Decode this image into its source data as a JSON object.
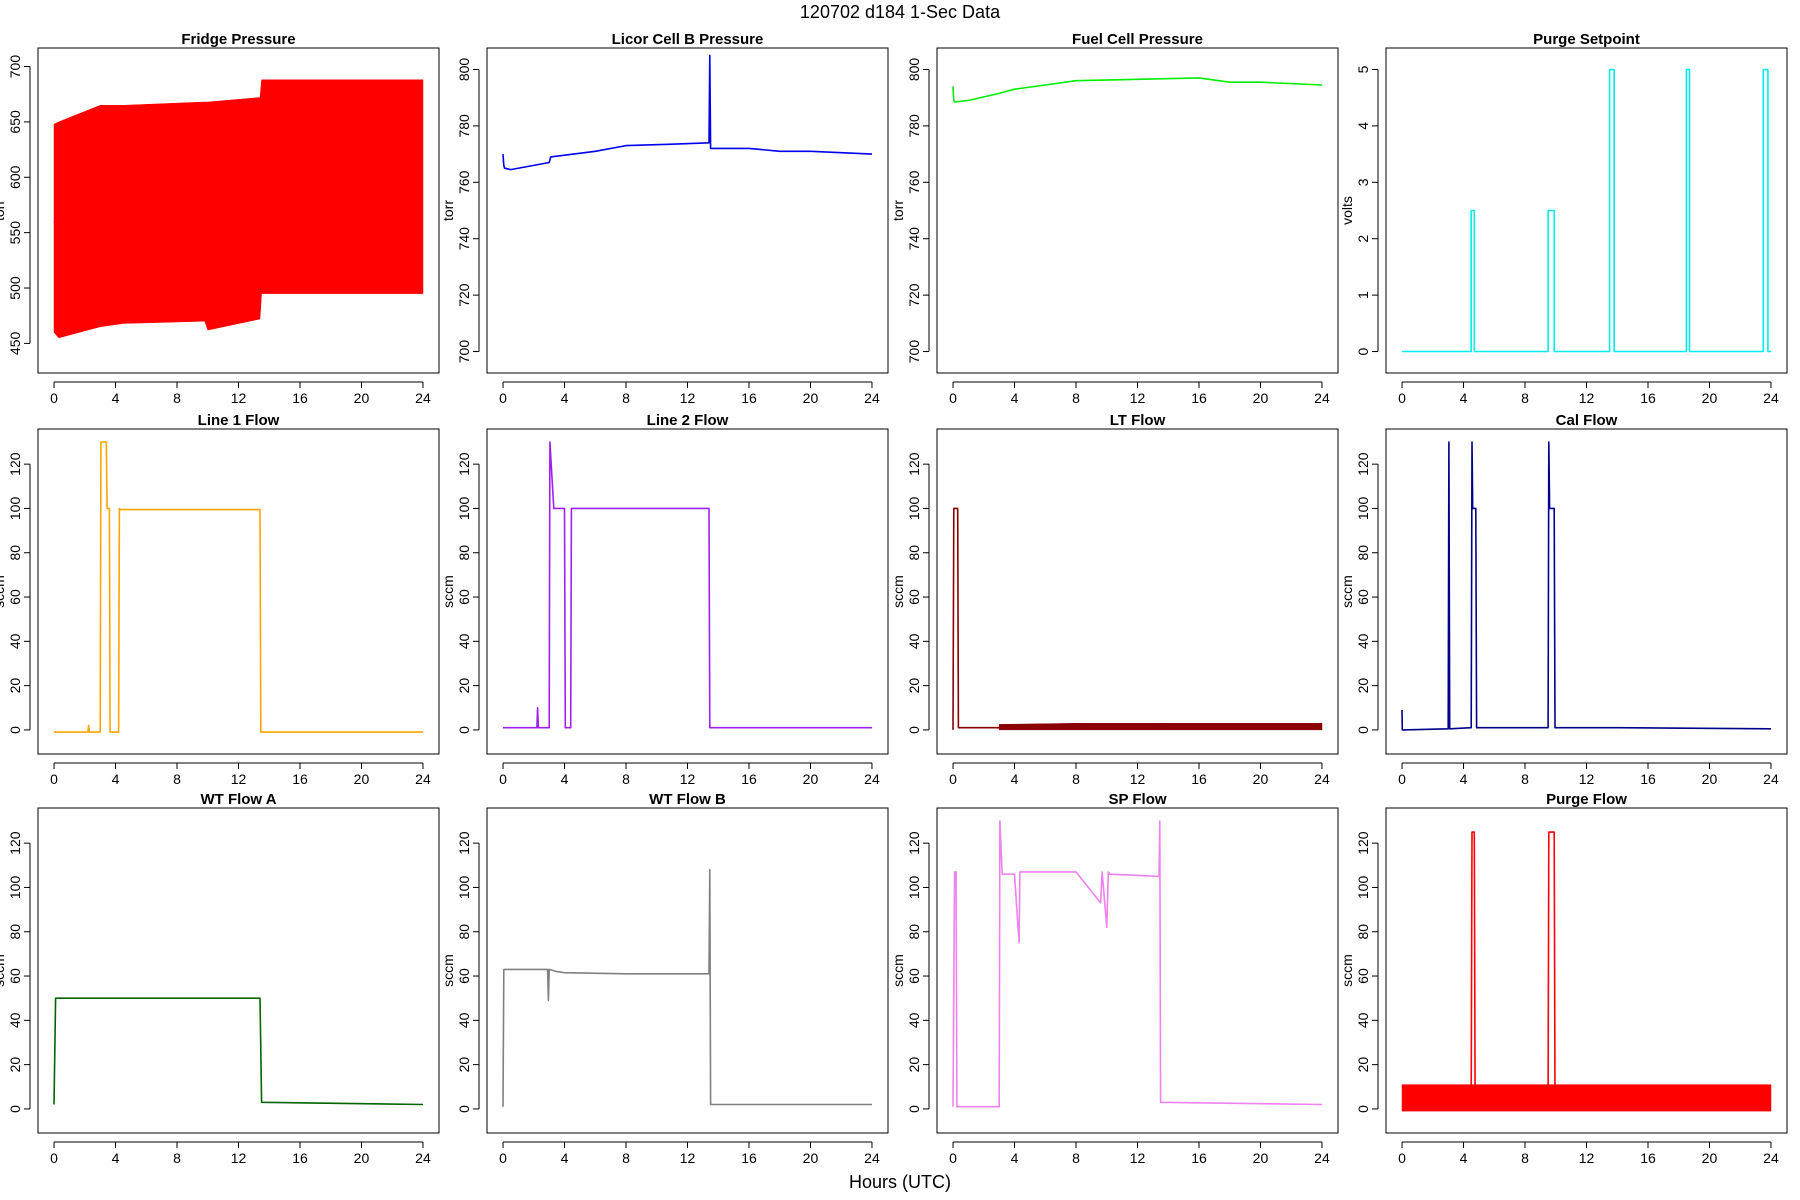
{
  "figure": {
    "title": "120702   d184   1-Sec Data",
    "xlabel": "Hours (UTC)"
  },
  "chart_data": [
    {
      "type": "line",
      "title": "Fridge Pressure",
      "ylabel": "torr",
      "color": "#ff0000",
      "xlim": [
        0,
        24
      ],
      "ylim": [
        435,
        705
      ],
      "xticks": [
        0,
        4,
        8,
        12,
        16,
        20,
        24
      ],
      "yticks": [
        450,
        500,
        550,
        600,
        650,
        700
      ],
      "series": [
        {
          "x": [
            0,
            0.2,
            3,
            4.5,
            9.8,
            10,
            13.4,
            13.5,
            24
          ],
          "y": [
            560,
            555,
            560,
            575,
            575,
            560,
            575,
            600,
            600
          ]
        }
      ],
      "band": {
        "x": [
          0,
          0.3,
          3,
          4.5,
          9.8,
          10,
          13.4,
          13.5,
          24
        ],
        "low": [
          460,
          455,
          465,
          468,
          470,
          462,
          472,
          495,
          495
        ],
        "high": [
          648,
          650,
          665,
          665,
          668,
          668,
          672,
          688,
          688
        ]
      }
    },
    {
      "type": "line",
      "title": "Licor Cell B Pressure",
      "ylabel": "torr",
      "color": "#0000ee",
      "xlim": [
        0,
        24
      ],
      "ylim": [
        697,
        803
      ],
      "xticks": [
        0,
        4,
        8,
        12,
        16,
        20,
        24
      ],
      "yticks": [
        700,
        720,
        740,
        760,
        780,
        800
      ],
      "series": [
        {
          "x": [
            0,
            0.05,
            0.1,
            0.5,
            3,
            3.1,
            6,
            8,
            11,
            13.4,
            13.45,
            13.5,
            16,
            18,
            20,
            24
          ],
          "y": [
            770,
            766,
            765,
            764.5,
            767,
            769,
            771,
            773,
            773.5,
            774,
            805,
            772,
            772,
            771,
            771,
            770
          ]
        }
      ]
    },
    {
      "type": "line",
      "title": "Fuel Cell Pressure",
      "ylabel": "torr",
      "color": "#00ee00",
      "xlim": [
        0,
        24
      ],
      "ylim": [
        697,
        803
      ],
      "xticks": [
        0,
        4,
        8,
        12,
        16,
        20,
        24
      ],
      "yticks": [
        700,
        720,
        740,
        760,
        780,
        800
      ],
      "series": [
        {
          "x": [
            0,
            0.05,
            0.1,
            1,
            3,
            4,
            6,
            8,
            12,
            16,
            18,
            20,
            24
          ],
          "y": [
            794,
            789,
            788.5,
            789,
            791.5,
            793,
            794.5,
            796,
            796.5,
            797,
            795.5,
            795.5,
            794.5
          ]
        }
      ]
    },
    {
      "type": "line",
      "title": "Purge Setpoint",
      "ylabel": "volts",
      "color": "#00eeee",
      "xlim": [
        0,
        24
      ],
      "ylim": [
        -0.15,
        5.15
      ],
      "xticks": [
        0,
        4,
        8,
        12,
        16,
        20,
        24
      ],
      "yticks": [
        0,
        1,
        2,
        3,
        4,
        5
      ],
      "series": [
        {
          "x": [
            0,
            4.5,
            4.5,
            4.7,
            4.7,
            9.5,
            9.5,
            9.9,
            9.9,
            13.5,
            13.5,
            13.8,
            13.8,
            18.5,
            18.5,
            18.7,
            18.7,
            23.5,
            23.5,
            23.8,
            23.8,
            24
          ],
          "y": [
            0,
            0,
            2.5,
            2.5,
            0,
            0,
            2.5,
            2.5,
            0,
            0,
            5,
            5,
            0,
            0,
            5,
            5,
            0,
            0,
            5,
            5,
            0,
            0
          ]
        }
      ]
    },
    {
      "type": "line",
      "title": "Line 1 Flow",
      "ylabel": "sccm",
      "color": "#ffa500",
      "xlim": [
        0,
        24
      ],
      "ylim": [
        -5,
        130
      ],
      "xticks": [
        0,
        4,
        8,
        12,
        16,
        20,
        24
      ],
      "yticks": [
        0,
        20,
        40,
        60,
        80,
        100,
        120
      ],
      "series": [
        {
          "x": [
            0,
            2.2,
            2.25,
            2.3,
            3,
            3.05,
            3.4,
            3.45,
            3.6,
            3.65,
            4.2,
            4.25,
            4.3,
            13.4,
            13.45,
            24
          ],
          "y": [
            -1,
            -1,
            2,
            -1,
            -1,
            130,
            130,
            100,
            100,
            -1,
            -1,
            100,
            99.5,
            99.5,
            -1,
            -1
          ]
        }
      ]
    },
    {
      "type": "line",
      "title": "Line 2 Flow",
      "ylabel": "sccm",
      "color": "#a020f0",
      "xlim": [
        0,
        24
      ],
      "ylim": [
        -5,
        130
      ],
      "xticks": [
        0,
        4,
        8,
        12,
        16,
        20,
        24
      ],
      "yticks": [
        0,
        20,
        40,
        60,
        80,
        100,
        120
      ],
      "series": [
        {
          "x": [
            0,
            2.2,
            2.25,
            2.3,
            3,
            3.05,
            3.3,
            3.35,
            4,
            4.05,
            4.4,
            4.45,
            4.9,
            4.95,
            13.4,
            13.45,
            24
          ],
          "y": [
            1,
            1,
            10,
            1,
            1,
            130,
            100,
            100,
            100,
            1,
            1,
            100,
            100,
            100,
            100,
            1,
            1
          ]
        }
      ]
    },
    {
      "type": "line",
      "title": "LT Flow",
      "ylabel": "sccm",
      "color": "#8b0000",
      "xlim": [
        0,
        24
      ],
      "ylim": [
        -5,
        130
      ],
      "xticks": [
        0,
        4,
        8,
        12,
        16,
        20,
        24
      ],
      "yticks": [
        0,
        20,
        40,
        60,
        80,
        100,
        120
      ],
      "series": [
        {
          "x": [
            0,
            0.05,
            0.3,
            0.35,
            3,
            24
          ],
          "y": [
            0,
            100,
            100,
            1,
            1,
            1
          ]
        }
      ],
      "band": {
        "x": [
          3,
          8,
          13.5,
          24
        ],
        "low": [
          0,
          0,
          0,
          0
        ],
        "high": [
          2.5,
          3,
          3,
          3
        ]
      }
    },
    {
      "type": "line",
      "title": "Cal Flow",
      "ylabel": "sccm",
      "color": "#00008b",
      "xlim": [
        0,
        24
      ],
      "ylim": [
        -5,
        130
      ],
      "xticks": [
        0,
        4,
        8,
        12,
        16,
        20,
        24
      ],
      "yticks": [
        0,
        20,
        40,
        60,
        80,
        100,
        120
      ],
      "series": [
        {
          "x": [
            0,
            0.02,
            0.05,
            3,
            3.05,
            3.1,
            4.5,
            4.55,
            4.6,
            4.8,
            4.85,
            9.5,
            9.55,
            9.6,
            9.9,
            9.95,
            14,
            24
          ],
          "y": [
            9,
            0,
            0,
            0.5,
            130,
            0.5,
            1,
            130,
            100,
            100,
            1,
            1,
            130,
            100,
            100,
            1,
            1,
            0.5
          ]
        }
      ]
    },
    {
      "type": "line",
      "title": "WT Flow A",
      "ylabel": "sccm",
      "color": "#006400",
      "xlim": [
        0,
        24
      ],
      "ylim": [
        -5,
        130
      ],
      "xticks": [
        0,
        4,
        8,
        12,
        16,
        20,
        24
      ],
      "yticks": [
        0,
        20,
        40,
        60,
        80,
        100,
        120
      ],
      "series": [
        {
          "x": [
            0,
            0.1,
            3,
            13.4,
            13.5,
            24
          ],
          "y": [
            2,
            50,
            50,
            50,
            3,
            2
          ]
        }
      ]
    },
    {
      "type": "line",
      "title": "WT Flow B",
      "ylabel": "sccm",
      "color": "#808080",
      "xlim": [
        0,
        24
      ],
      "ylim": [
        -5,
        130
      ],
      "xticks": [
        0,
        4,
        8,
        12,
        16,
        20,
        24
      ],
      "yticks": [
        0,
        20,
        40,
        60,
        80,
        100,
        120
      ],
      "series": [
        {
          "x": [
            0,
            0.05,
            2.9,
            2.95,
            3,
            3.5,
            4,
            8,
            13.4,
            13.45,
            13.5,
            24
          ],
          "y": [
            1,
            63,
            63,
            49,
            63,
            62,
            61.5,
            61,
            61,
            108,
            2,
            2
          ]
        }
      ]
    },
    {
      "type": "line",
      "title": "SP Flow",
      "ylabel": "sccm",
      "color": "#ee82ee",
      "xlim": [
        0,
        24
      ],
      "ylim": [
        -5,
        130
      ],
      "xticks": [
        0,
        4,
        8,
        12,
        16,
        20,
        24
      ],
      "yticks": [
        0,
        20,
        40,
        60,
        80,
        100,
        120
      ],
      "series": [
        {
          "x": [
            0,
            0.1,
            0.2,
            0.25,
            3,
            3.05,
            3.2,
            4,
            4.3,
            4.35,
            4.4,
            8,
            9.6,
            9.7,
            10,
            10.1,
            10.2,
            13.4,
            13.45,
            13.5,
            24
          ],
          "y": [
            1,
            107,
            107,
            1,
            1,
            130,
            106,
            106,
            75,
            107,
            107,
            107,
            93,
            107,
            82,
            107,
            106,
            105,
            130,
            3,
            2
          ]
        }
      ]
    },
    {
      "type": "line",
      "title": "Purge Flow",
      "ylabel": "sccm",
      "color": "#ff0000",
      "xlim": [
        0,
        24
      ],
      "ylim": [
        -5,
        130
      ],
      "xticks": [
        0,
        4,
        8,
        12,
        16,
        20,
        24
      ],
      "yticks": [
        0,
        20,
        40,
        60,
        80,
        100,
        120
      ],
      "series": [
        {
          "x": [
            0,
            4.5,
            4.55,
            4.7,
            4.75,
            9.5,
            9.55,
            9.9,
            9.95,
            24
          ],
          "y": [
            5,
            5,
            125,
            125,
            5,
            5,
            125,
            125,
            5,
            5
          ]
        }
      ],
      "band": {
        "x": [
          0,
          24
        ],
        "low": [
          -1,
          -1
        ],
        "high": [
          11,
          11
        ]
      }
    }
  ]
}
